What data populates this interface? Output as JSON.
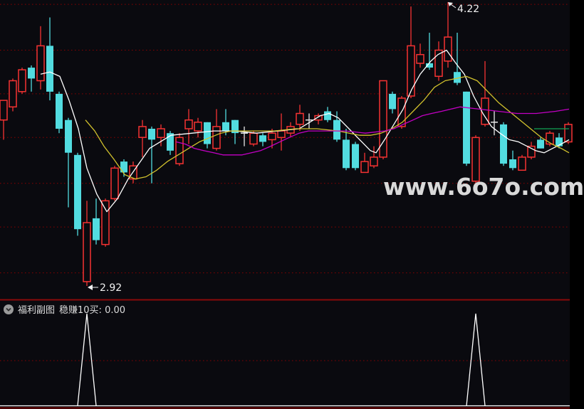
{
  "watermark": {
    "text": "www.6o7o.com"
  },
  "sub_chart": {
    "indicator_name": "福利副图",
    "signal_text": "稳赚10买: 0.00",
    "collapse_icon": "chevron-down-circle-icon"
  },
  "colors": {
    "background": "#0a0a0f",
    "up_candle": "#f63232",
    "down_candle": "#52dce0",
    "flat_candle": "#e8e8e8",
    "ma_white": "#ffffff",
    "ma_yellow": "#d2c22d",
    "ma_magenta": "#c400c4",
    "green_line": "#12a455",
    "gridline": "#8b0000",
    "panel_separator": "#8a0a0a",
    "panel_bottom": "#6b0000",
    "signal_line": "#ffffff",
    "annotation_text": "#f0f0f0",
    "watermark_text": "#d9d9d9"
  },
  "chart_data": {
    "type": "candlestick",
    "title": "",
    "legend_position": "none",
    "grid": "dotted-horizontal",
    "y_axis": {
      "p1": 4.22,
      "y1": 3,
      "p2": 2.92,
      "y2": 402
    },
    "x_start": 5,
    "x_step": 13,
    "gridline_prices": [
      4.21,
      4.0,
      3.8,
      3.6,
      3.39,
      3.19,
      2.98
    ],
    "candle_format": [
      "open",
      "high",
      "low",
      "close",
      "color"
    ],
    "candles": [
      [
        3.68,
        3.77,
        3.59,
        3.77,
        "red"
      ],
      [
        3.74,
        3.87,
        3.72,
        3.86,
        "red"
      ],
      [
        3.81,
        3.92,
        3.8,
        3.91,
        "red"
      ],
      [
        3.92,
        3.93,
        3.81,
        3.87,
        "cyan"
      ],
      [
        3.86,
        4.11,
        3.82,
        4.02,
        "red"
      ],
      [
        4.02,
        4.15,
        3.77,
        3.81,
        "cyan"
      ],
      [
        3.8,
        3.81,
        3.62,
        3.64,
        "cyan"
      ],
      [
        3.68,
        3.69,
        3.28,
        3.53,
        "cyan"
      ],
      [
        3.52,
        3.53,
        3.15,
        3.18,
        "cyan"
      ],
      [
        2.94,
        3.31,
        2.92,
        3.21,
        "red"
      ],
      [
        3.23,
        3.32,
        3.11,
        3.13,
        "cyan"
      ],
      [
        3.11,
        3.32,
        3.1,
        3.31,
        "red"
      ],
      [
        3.32,
        3.47,
        3.31,
        3.46,
        "red"
      ],
      [
        3.49,
        3.5,
        3.42,
        3.44,
        "cyan"
      ],
      [
        3.41,
        3.49,
        3.39,
        3.47,
        "red"
      ],
      [
        3.6,
        3.68,
        3.51,
        3.65,
        "red"
      ],
      [
        3.64,
        3.65,
        3.39,
        3.59,
        "cyan"
      ],
      [
        3.6,
        3.66,
        3.56,
        3.64,
        "red"
      ],
      [
        3.62,
        3.63,
        3.52,
        3.54,
        "cyan"
      ],
      [
        3.48,
        3.62,
        3.47,
        3.6,
        "red"
      ],
      [
        3.64,
        3.73,
        3.57,
        3.68,
        "red"
      ],
      [
        3.63,
        3.69,
        3.6,
        3.67,
        "red"
      ],
      [
        3.67,
        3.67,
        3.55,
        3.57,
        "cyan"
      ],
      [
        3.55,
        3.73,
        3.54,
        3.65,
        "red"
      ],
      [
        3.67,
        3.73,
        3.61,
        3.63,
        "cyan"
      ],
      [
        3.68,
        3.68,
        3.57,
        3.62,
        "cyan"
      ],
      [
        3.62,
        3.65,
        3.56,
        3.62,
        "white"
      ],
      [
        3.57,
        3.63,
        3.56,
        3.62,
        "red"
      ],
      [
        3.61,
        3.62,
        3.56,
        3.58,
        "cyan"
      ],
      [
        3.59,
        3.64,
        3.55,
        3.62,
        "red"
      ],
      [
        3.6,
        3.71,
        3.54,
        3.63,
        "red"
      ],
      [
        3.62,
        3.67,
        3.6,
        3.65,
        "red"
      ],
      [
        3.66,
        3.75,
        3.63,
        3.71,
        "red"
      ],
      [
        3.68,
        3.71,
        3.64,
        3.68,
        "white"
      ],
      [
        3.68,
        3.71,
        3.66,
        3.7,
        "red"
      ],
      [
        3.72,
        3.74,
        3.67,
        3.68,
        "cyan"
      ],
      [
        3.68,
        3.72,
        3.58,
        3.59,
        "cyan"
      ],
      [
        3.59,
        3.64,
        3.45,
        3.46,
        "cyan"
      ],
      [
        3.57,
        3.58,
        3.45,
        3.46,
        "cyan"
      ],
      [
        3.44,
        3.53,
        3.44,
        3.49,
        "red"
      ],
      [
        3.47,
        3.56,
        3.46,
        3.51,
        "red"
      ],
      [
        3.51,
        3.86,
        3.5,
        3.86,
        "red"
      ],
      [
        3.8,
        3.81,
        3.71,
        3.73,
        "cyan"
      ],
      [
        3.65,
        3.79,
        3.64,
        3.78,
        "red"
      ],
      [
        3.79,
        4.2,
        3.78,
        4.02,
        "red"
      ],
      [
        3.94,
        4.03,
        3.92,
        3.98,
        "red"
      ],
      [
        3.94,
        4.08,
        3.91,
        3.92,
        "cyan"
      ],
      [
        3.88,
        4.04,
        3.86,
        4.0,
        "red"
      ],
      [
        3.95,
        4.22,
        3.92,
        4.06,
        "red"
      ],
      [
        3.9,
        4.08,
        3.84,
        3.85,
        "cyan"
      ],
      [
        3.81,
        3.81,
        3.47,
        3.48,
        "cyan"
      ],
      [
        3.4,
        3.61,
        3.39,
        3.6,
        "red"
      ],
      [
        3.66,
        3.95,
        3.65,
        3.78,
        "red"
      ],
      [
        3.67,
        3.72,
        3.61,
        3.67,
        "white"
      ],
      [
        3.66,
        3.67,
        3.47,
        3.48,
        "cyan"
      ],
      [
        3.5,
        3.54,
        3.45,
        3.46,
        "cyan"
      ],
      [
        3.45,
        3.52,
        3.45,
        3.51,
        "red"
      ],
      [
        3.51,
        3.58,
        3.5,
        3.56,
        "red"
      ],
      [
        3.59,
        3.6,
        3.55,
        3.55,
        "cyan"
      ],
      [
        3.57,
        3.63,
        3.56,
        3.62,
        "red"
      ],
      [
        3.6,
        3.62,
        3.55,
        3.56,
        "cyan"
      ],
      [
        3.58,
        3.67,
        3.57,
        3.66,
        "red"
      ]
    ],
    "series": [
      {
        "name": "MA-white",
        "color_key": "ma_white",
        "points": [
          [
            57,
            3.89
          ],
          [
            70,
            3.9
          ],
          [
            84,
            3.88
          ],
          [
            97,
            3.77
          ],
          [
            110,
            3.64
          ],
          [
            122,
            3.46
          ],
          [
            136,
            3.34
          ],
          [
            150,
            3.26
          ],
          [
            165,
            3.32
          ],
          [
            180,
            3.41
          ],
          [
            195,
            3.48
          ],
          [
            210,
            3.55
          ],
          [
            225,
            3.58
          ],
          [
            240,
            3.61
          ],
          [
            270,
            3.62
          ],
          [
            300,
            3.63
          ],
          [
            330,
            3.63
          ],
          [
            360,
            3.62
          ],
          [
            390,
            3.63
          ],
          [
            420,
            3.64
          ],
          [
            435,
            3.67
          ],
          [
            450,
            3.7
          ],
          [
            462,
            3.71
          ],
          [
            475,
            3.69
          ],
          [
            490,
            3.64
          ],
          [
            505,
            3.59
          ],
          [
            520,
            3.54
          ],
          [
            528,
            3.53
          ],
          [
            540,
            3.59
          ],
          [
            553,
            3.66
          ],
          [
            566,
            3.73
          ],
          [
            578,
            3.82
          ],
          [
            590,
            3.89
          ],
          [
            605,
            3.95
          ],
          [
            615,
            3.98
          ],
          [
            627,
            4.0
          ],
          [
            640,
            3.94
          ],
          [
            652,
            3.89
          ],
          [
            665,
            3.79
          ],
          [
            678,
            3.71
          ],
          [
            690,
            3.65
          ],
          [
            702,
            3.62
          ],
          [
            715,
            3.59
          ],
          [
            728,
            3.58
          ],
          [
            740,
            3.56
          ],
          [
            752,
            3.54
          ],
          [
            764,
            3.53
          ],
          [
            776,
            3.55
          ],
          [
            788,
            3.57
          ],
          [
            799,
            3.59
          ]
        ]
      },
      {
        "name": "MA-yellow",
        "color_key": "ma_yellow",
        "points": [
          [
            120,
            3.68
          ],
          [
            133,
            3.63
          ],
          [
            146,
            3.56
          ],
          [
            160,
            3.5
          ],
          [
            175,
            3.43
          ],
          [
            190,
            3.41
          ],
          [
            205,
            3.42
          ],
          [
            220,
            3.45
          ],
          [
            235,
            3.49
          ],
          [
            250,
            3.52
          ],
          [
            265,
            3.55
          ],
          [
            280,
            3.58
          ],
          [
            295,
            3.6
          ],
          [
            310,
            3.62
          ],
          [
            325,
            3.63
          ],
          [
            355,
            3.63
          ],
          [
            385,
            3.63
          ],
          [
            415,
            3.64
          ],
          [
            445,
            3.64
          ],
          [
            475,
            3.63
          ],
          [
            505,
            3.61
          ],
          [
            520,
            3.61
          ],
          [
            535,
            3.62
          ],
          [
            550,
            3.64
          ],
          [
            565,
            3.67
          ],
          [
            580,
            3.72
          ],
          [
            595,
            3.77
          ],
          [
            610,
            3.83
          ],
          [
            625,
            3.86
          ],
          [
            640,
            3.87
          ],
          [
            655,
            3.88
          ],
          [
            670,
            3.86
          ],
          [
            685,
            3.81
          ],
          [
            700,
            3.76
          ],
          [
            715,
            3.72
          ],
          [
            730,
            3.68
          ],
          [
            745,
            3.64
          ],
          [
            760,
            3.6
          ],
          [
            775,
            3.57
          ],
          [
            788,
            3.55
          ],
          [
            799,
            3.53
          ]
        ]
      },
      {
        "name": "MA-magenta",
        "color_key": "ma_magenta",
        "points": [
          [
            247,
            3.58
          ],
          [
            260,
            3.57
          ],
          [
            273,
            3.55
          ],
          [
            286,
            3.54
          ],
          [
            300,
            3.53
          ],
          [
            313,
            3.52
          ],
          [
            340,
            3.52
          ],
          [
            366,
            3.54
          ],
          [
            380,
            3.56
          ],
          [
            393,
            3.58
          ],
          [
            406,
            3.6
          ],
          [
            420,
            3.62
          ],
          [
            433,
            3.63
          ],
          [
            460,
            3.63
          ],
          [
            486,
            3.63
          ],
          [
            513,
            3.62
          ],
          [
            540,
            3.63
          ],
          [
            553,
            3.64
          ],
          [
            566,
            3.66
          ],
          [
            580,
            3.68
          ],
          [
            593,
            3.7
          ],
          [
            606,
            3.71
          ],
          [
            620,
            3.72
          ],
          [
            633,
            3.73
          ],
          [
            646,
            3.74
          ],
          [
            673,
            3.73
          ],
          [
            700,
            3.72
          ],
          [
            726,
            3.71
          ],
          [
            753,
            3.71
          ],
          [
            780,
            3.72
          ],
          [
            799,
            3.73
          ]
        ]
      },
      {
        "name": "green-flat-line",
        "color_key": "green_line",
        "points": [
          [
            750,
            3.64
          ],
          [
            799,
            3.64
          ]
        ]
      }
    ],
    "annotations": [
      {
        "text": "4.22",
        "price": 4.22,
        "candle_index": 48,
        "dir": "ne"
      },
      {
        "text": "2.92",
        "price": 2.92,
        "candle_index": 9,
        "dir": "e"
      }
    ],
    "sub_panel": {
      "name": "福利副图",
      "signal_label": "稳赚10买",
      "signal_value": "0.00",
      "signal_candle_indices": [
        9,
        51
      ]
    }
  }
}
